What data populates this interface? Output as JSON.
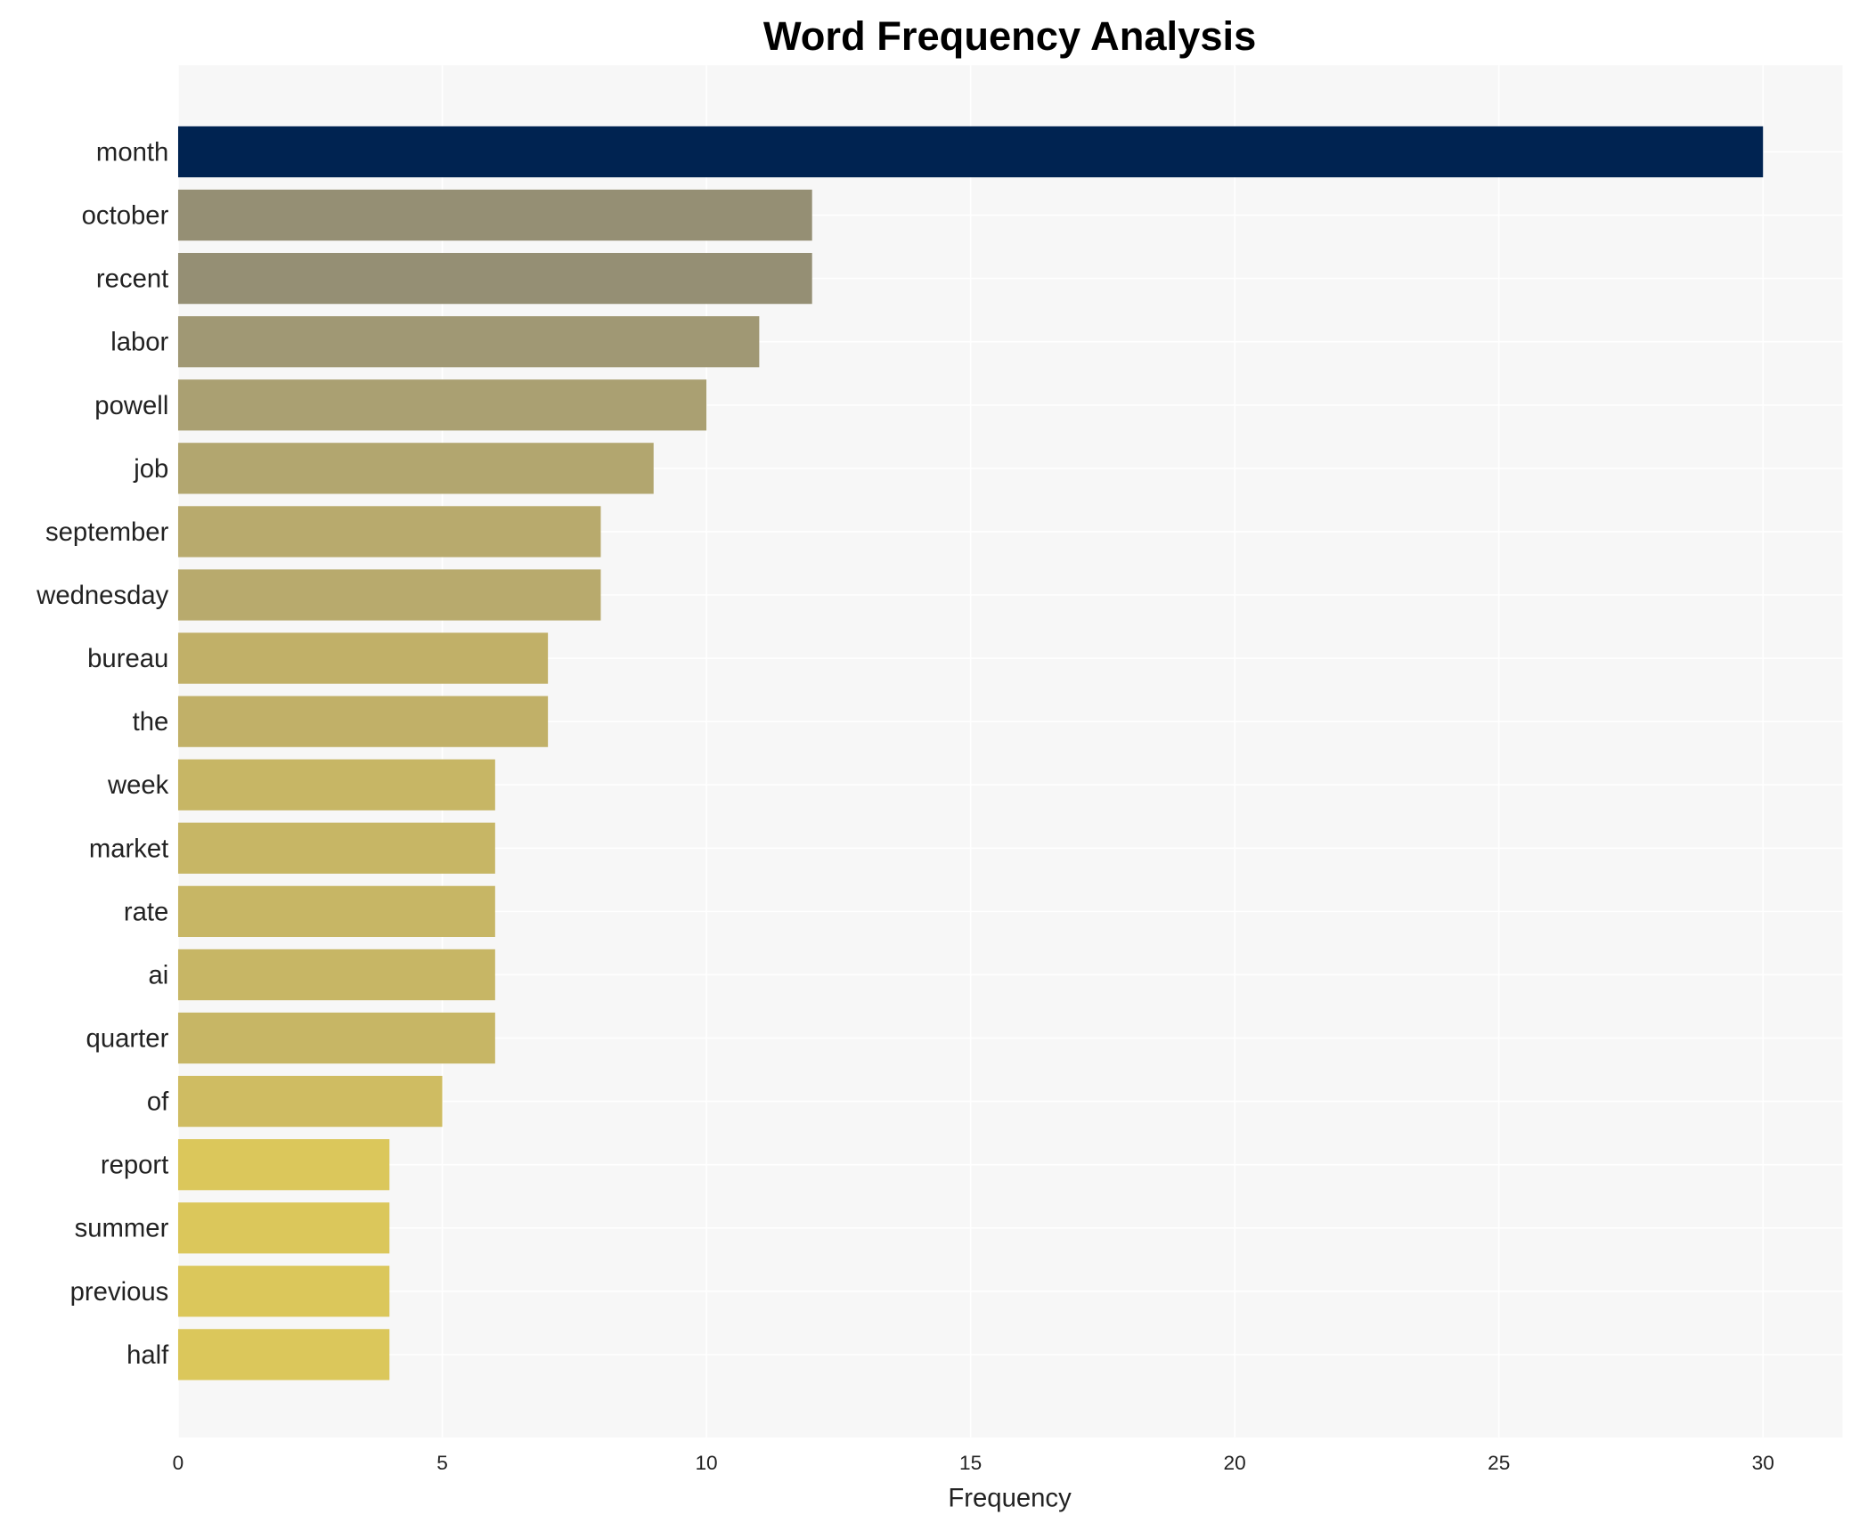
{
  "chart_data": {
    "type": "bar",
    "orientation": "horizontal",
    "title": "Word Frequency Analysis",
    "xlabel": "Frequency",
    "ylabel": "",
    "xlim": [
      0,
      31.5
    ],
    "xticks": [
      0,
      5,
      10,
      15,
      20,
      25,
      30
    ],
    "grid": true,
    "categories": [
      "month",
      "october",
      "recent",
      "labor",
      "powell",
      "job",
      "september",
      "wednesday",
      "bureau",
      "the",
      "week",
      "market",
      "rate",
      "ai",
      "quarter",
      "of",
      "report",
      "summer",
      "previous",
      "half"
    ],
    "values": [
      30,
      12,
      12,
      11,
      10,
      9,
      8,
      8,
      7,
      7,
      6,
      6,
      6,
      6,
      6,
      5,
      4,
      4,
      4,
      4
    ],
    "colors": [
      "#002351",
      "#958f74",
      "#958f74",
      "#a09874",
      "#aaa072",
      "#b2a66f",
      "#b8aa6d",
      "#b8aa6d",
      "#c1b068",
      "#c1b068",
      "#c7b665",
      "#c7b665",
      "#c7b665",
      "#c7b665",
      "#c7b665",
      "#cfbc62",
      "#dbc75b",
      "#dbc75b",
      "#dbc75b",
      "#dbc75b"
    ],
    "plot_background": "#f7f7f7"
  }
}
